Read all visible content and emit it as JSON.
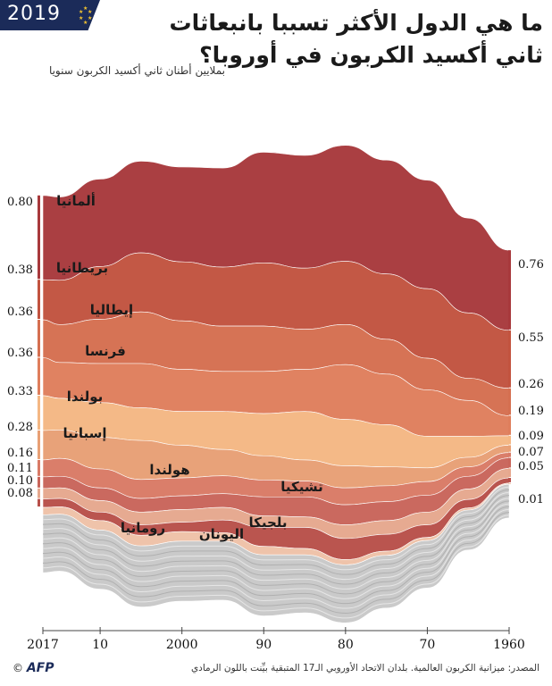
{
  "header": {
    "year": "2019",
    "title_line1": "ما هي الدول الأكثر تسببا بانبعاثات",
    "title_line2": "ثاني أكسيد الكربون في أوروبا؟",
    "unit": "بملايين أطنان ثاني أكسيد الكربون سنويا"
  },
  "footer": {
    "source": "المصدر: ميزانية الكربون العالمية. بلدان الاتحاد الأوروبي الـ17 المتبقية بيِّنت باللون الرمادي",
    "credit_symbol": "©",
    "credit_agency": "AFP"
  },
  "colors": {
    "badge": "#1b2b59",
    "countries": [
      "#a8393c",
      "#c2533f",
      "#d56f50",
      "#df7e5c",
      "#f4b784",
      "#e8a075",
      "#d97a66",
      "#c9655a",
      "#e6a88e",
      "#b8504a",
      "#efc2a8",
      "#f2d6c6"
    ],
    "other": "#c9c9c9"
  },
  "chart_data": {
    "type": "area",
    "stacking": "streamgraph",
    "x_axis": "year (reversed, 2017 on the left, 1960 on the right)",
    "x_ticks": [
      "2017",
      "10",
      "2000",
      "90",
      "80",
      "70",
      "1960"
    ],
    "xlim": [
      2017,
      1960
    ],
    "series_labels": [
      "ألمانيا",
      "بريطانيا",
      "إيطاليا",
      "فرنسا",
      "بولندا",
      "إسبانيا",
      "هولندا",
      "تشيكيا",
      "بلجيكا",
      "رومانيا",
      "اليونان"
    ],
    "values_2017_left": [
      "0.80",
      "0.38",
      "0.36",
      "0.36",
      "0.33",
      "0.28",
      "0.16",
      "0.11",
      "0.10",
      "0.08"
    ],
    "values_1960_right": [
      "0.76",
      "0.55",
      "0.26",
      "0.19",
      "0.09",
      "0.07",
      "0.05",
      "0.01"
    ],
    "years": [
      2017,
      2015,
      2010,
      2005,
      2000,
      1995,
      1990,
      1985,
      1980,
      1975,
      1970,
      1965,
      1960
    ],
    "series": [
      {
        "name": "ألمانيا",
        "values": [
          0.8,
          0.79,
          0.83,
          0.87,
          0.9,
          0.94,
          1.05,
          1.07,
          1.1,
          1.08,
          1.03,
          0.9,
          0.76
        ]
      },
      {
        "name": "بريطانيا",
        "values": [
          0.38,
          0.42,
          0.5,
          0.56,
          0.56,
          0.56,
          0.6,
          0.58,
          0.6,
          0.62,
          0.66,
          0.62,
          0.55
        ]
      },
      {
        "name": "إيطاليا",
        "values": [
          0.36,
          0.36,
          0.42,
          0.49,
          0.46,
          0.43,
          0.43,
          0.38,
          0.38,
          0.33,
          0.3,
          0.21,
          0.26
        ]
      },
      {
        "name": "فرنسا",
        "values": [
          0.36,
          0.34,
          0.37,
          0.42,
          0.4,
          0.38,
          0.4,
          0.4,
          0.52,
          0.48,
          0.44,
          0.34,
          0.19
        ]
      },
      {
        "name": "بولندا",
        "values": [
          0.33,
          0.3,
          0.33,
          0.31,
          0.32,
          0.36,
          0.4,
          0.46,
          0.44,
          0.4,
          0.3,
          0.2,
          0.09
        ]
      },
      {
        "name": "إسبانيا",
        "values": [
          0.28,
          0.27,
          0.3,
          0.37,
          0.31,
          0.25,
          0.23,
          0.2,
          0.21,
          0.18,
          0.13,
          0.09,
          0.07
        ]
      },
      {
        "name": "هولندا",
        "values": [
          0.16,
          0.17,
          0.18,
          0.18,
          0.17,
          0.17,
          0.16,
          0.15,
          0.16,
          0.15,
          0.13,
          0.09,
          0.05
        ]
      },
      {
        "name": "تشيكيا",
        "values": [
          0.11,
          0.11,
          0.12,
          0.13,
          0.13,
          0.13,
          0.18,
          0.19,
          0.19,
          0.18,
          0.16,
          0.12,
          0.1
        ]
      },
      {
        "name": "بلجيكا",
        "values": [
          0.1,
          0.1,
          0.11,
          0.12,
          0.12,
          0.12,
          0.11,
          0.1,
          0.13,
          0.13,
          0.12,
          0.1,
          0.09
        ]
      },
      {
        "name": "رومانيا",
        "values": [
          0.08,
          0.08,
          0.08,
          0.1,
          0.09,
          0.12,
          0.18,
          0.2,
          0.2,
          0.16,
          0.12,
          0.08,
          0.05
        ]
      },
      {
        "name": "اليونان",
        "values": [
          0.07,
          0.07,
          0.09,
          0.1,
          0.09,
          0.08,
          0.08,
          0.06,
          0.05,
          0.04,
          0.03,
          0.02,
          0.01
        ]
      },
      {
        "name": "",
        "values": [
          0.55,
          0.54,
          0.56,
          0.58,
          0.57,
          0.56,
          0.58,
          0.55,
          0.55,
          0.5,
          0.45,
          0.38,
          0.32
        ]
      }
    ]
  }
}
